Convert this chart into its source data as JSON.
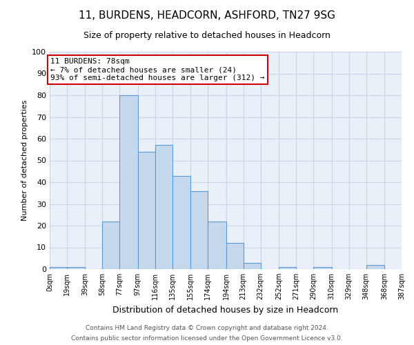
{
  "title": "11, BURDENS, HEADCORN, ASHFORD, TN27 9SG",
  "subtitle": "Size of property relative to detached houses in Headcorn",
  "xlabel": "Distribution of detached houses by size in Headcorn",
  "ylabel": "Number of detached properties",
  "bar_color": "#c5d8ec",
  "bar_edge_color": "#5b9bd5",
  "background_color": "#ffffff",
  "plot_bg_color": "#eaf0f8",
  "grid_color": "#c8d4e8",
  "annotation_box_color": "#cc0000",
  "bins": [
    0,
    19,
    39,
    58,
    77,
    97,
    116,
    135,
    155,
    174,
    194,
    213,
    232,
    252,
    271,
    290,
    310,
    329,
    348,
    368,
    387
  ],
  "bin_labels": [
    "0sqm",
    "19sqm",
    "39sqm",
    "58sqm",
    "77sqm",
    "97sqm",
    "116sqm",
    "135sqm",
    "155sqm",
    "174sqm",
    "194sqm",
    "213sqm",
    "232sqm",
    "252sqm",
    "271sqm",
    "290sqm",
    "310sqm",
    "329sqm",
    "348sqm",
    "368sqm",
    "387sqm"
  ],
  "heights": [
    1,
    1,
    0,
    22,
    80,
    54,
    57,
    43,
    36,
    22,
    12,
    3,
    0,
    1,
    0,
    1,
    0,
    0,
    2,
    0
  ],
  "ylim": [
    0,
    100
  ],
  "yticks": [
    0,
    10,
    20,
    30,
    40,
    50,
    60,
    70,
    80,
    90,
    100
  ],
  "annotation_title": "11 BURDENS: 78sqm",
  "annotation_line1": "← 7% of detached houses are smaller (24)",
  "annotation_line2": "93% of semi-detached houses are larger (312) →",
  "footer_line1": "Contains HM Land Registry data © Crown copyright and database right 2024.",
  "footer_line2": "Contains public sector information licensed under the Open Government Licence v3.0."
}
